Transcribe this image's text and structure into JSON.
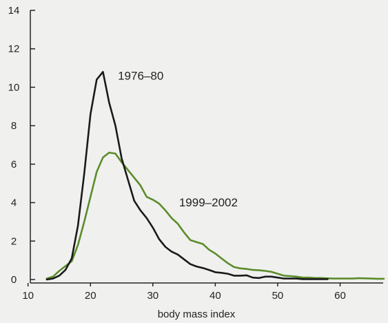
{
  "chart_data": {
    "type": "line",
    "title": "",
    "xlabel": "body mass index",
    "ylabel": "",
    "xlim": [
      10,
      67
    ],
    "ylim": [
      0,
      14
    ],
    "xticks": [
      10,
      20,
      30,
      40,
      50,
      60
    ],
    "yticks": [
      0,
      2,
      4,
      6,
      8,
      10,
      12,
      14
    ],
    "grid": false,
    "legend": "inline labels",
    "series": [
      {
        "name": "1976–80",
        "color": "#1a1a1a",
        "x": [
          13,
          14,
          15,
          16,
          17,
          18,
          19,
          20,
          21,
          22,
          23,
          24,
          25,
          26,
          27,
          28,
          29,
          30,
          31,
          32,
          33,
          34,
          35,
          36,
          37,
          38,
          39,
          40,
          41,
          42,
          43,
          44,
          45,
          46,
          47,
          48,
          49,
          50,
          51,
          52,
          53,
          54,
          55,
          56,
          57,
          58
        ],
        "y": [
          0.0,
          0.05,
          0.2,
          0.5,
          1.1,
          2.8,
          5.5,
          8.6,
          10.4,
          10.8,
          9.2,
          8.0,
          6.3,
          5.2,
          4.1,
          3.6,
          3.2,
          2.7,
          2.1,
          1.7,
          1.45,
          1.3,
          1.05,
          0.8,
          0.68,
          0.6,
          0.5,
          0.38,
          0.35,
          0.3,
          0.2,
          0.2,
          0.22,
          0.1,
          0.08,
          0.15,
          0.15,
          0.1,
          0.05,
          0.05,
          0.05,
          0.02,
          0.02,
          0.02,
          0.02,
          0.02
        ]
      },
      {
        "name": "1999–2002",
        "color": "#5b8c2a",
        "x": [
          13,
          14,
          15,
          16,
          17,
          18,
          19,
          20,
          21,
          22,
          23,
          24,
          25,
          26,
          27,
          28,
          29,
          30,
          31,
          32,
          33,
          34,
          35,
          36,
          37,
          38,
          39,
          40,
          41,
          42,
          43,
          44,
          45,
          46,
          47,
          48,
          49,
          50,
          51,
          52,
          53,
          54,
          55,
          56,
          57,
          58,
          59,
          60,
          61,
          62,
          63,
          64,
          65,
          66,
          67
        ],
        "y": [
          0.05,
          0.15,
          0.45,
          0.7,
          0.95,
          1.8,
          3.0,
          4.3,
          5.6,
          6.35,
          6.6,
          6.55,
          6.1,
          5.7,
          5.3,
          4.9,
          4.3,
          4.15,
          3.95,
          3.6,
          3.2,
          2.9,
          2.45,
          2.05,
          1.95,
          1.85,
          1.55,
          1.35,
          1.1,
          0.85,
          0.65,
          0.58,
          0.55,
          0.5,
          0.48,
          0.45,
          0.4,
          0.3,
          0.2,
          0.18,
          0.15,
          0.1,
          0.1,
          0.08,
          0.08,
          0.06,
          0.05,
          0.05,
          0.05,
          0.05,
          0.07,
          0.06,
          0.05,
          0.04,
          0.04
        ]
      }
    ],
    "annotations": [
      {
        "text": "1976–80",
        "series": 0,
        "x": 24.4,
        "y": 10.4
      },
      {
        "text": "1999–2002",
        "series": 1,
        "x": 34.2,
        "y": 3.8
      }
    ]
  }
}
